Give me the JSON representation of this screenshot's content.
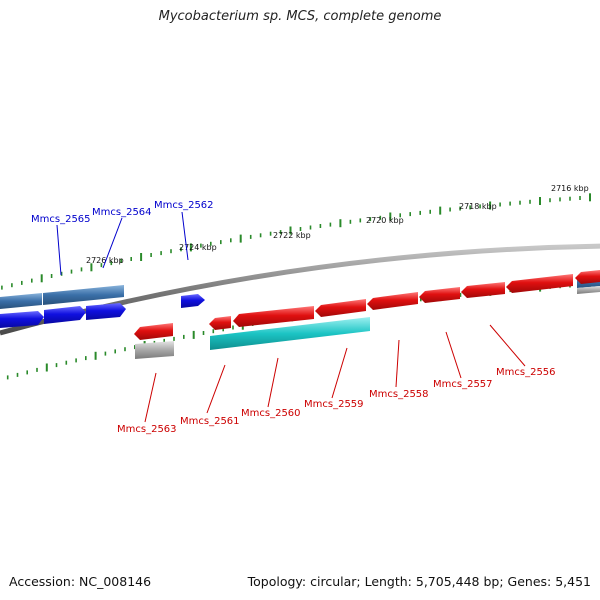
{
  "title": "Mycobacterium sp. MCS, complete genome",
  "footer": {
    "accession": "Accession: NC_008146",
    "summary": "Topology: circular; Length: 5,705,448 bp; Genes: 5,451"
  },
  "colors": {
    "forward_gene": "#1010e0",
    "reverse_gene": "#e01010",
    "forward_feature": "#3a6fa8",
    "reverse_feature": "#1cc4c4",
    "reverse_pseudo": "#a8a8a8",
    "backbone": "#8a8a8a",
    "tick": "#2a8a2a",
    "forward_label": "#0000cc",
    "reverse_label": "#cc0000"
  },
  "scale_labels": [
    "2716 kbp",
    "2718 kbp",
    "2720 kbp",
    "2722 kbp",
    "2724 kbp",
    "2726 kbp"
  ],
  "forward_genes": [
    {
      "name": "Mmcs_2565"
    },
    {
      "name": "Mmcs_2564"
    },
    {
      "name": "Mmcs_2562"
    }
  ],
  "reverse_genes": [
    {
      "name": "Mmcs_2563"
    },
    {
      "name": "Mmcs_2561"
    },
    {
      "name": "Mmcs_2560"
    },
    {
      "name": "Mmcs_2559"
    },
    {
      "name": "Mmcs_2558"
    },
    {
      "name": "Mmcs_2557"
    },
    {
      "name": "Mmcs_2556"
    }
  ]
}
